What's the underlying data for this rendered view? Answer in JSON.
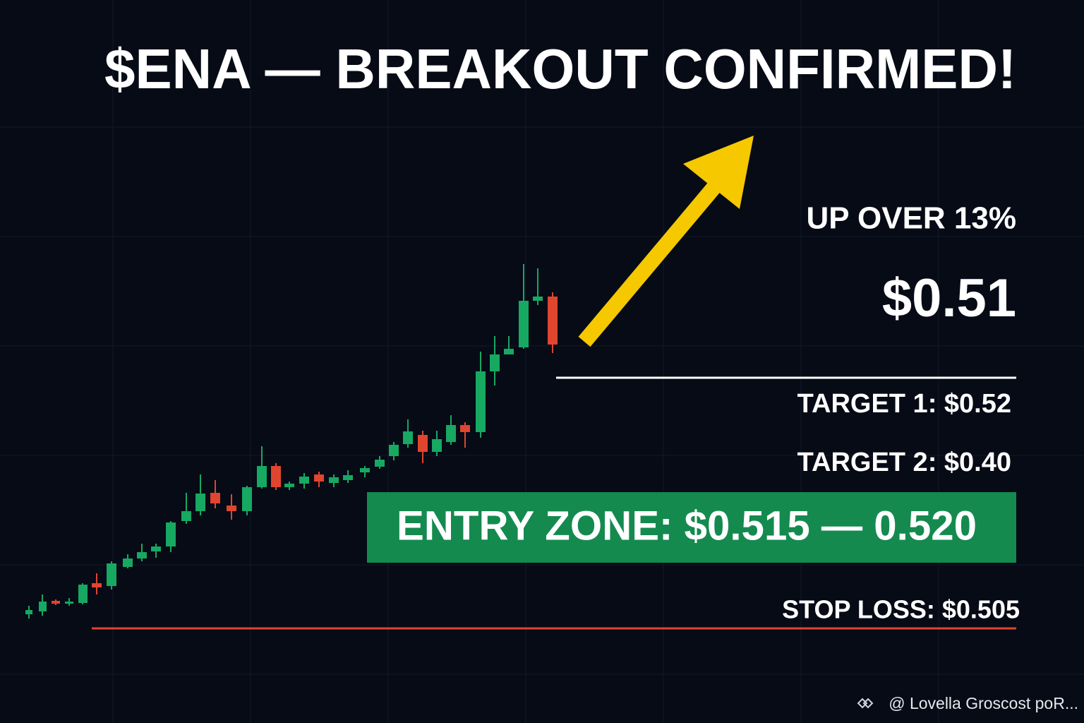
{
  "header": {
    "title": "$ENA — BREAKOUT CONFIRMED!"
  },
  "stats": {
    "change": "UP OVER 13%",
    "price": "$0.51"
  },
  "levels": {
    "target_1": "TARGET 1: $0.52",
    "target_2": "TARGET 2: $0.40",
    "entry_zone": "ENTRY ZONE: $0.515 — 0.520",
    "stop_loss": "STOP LOSS: $0.505"
  },
  "footer": {
    "watermark": "@ Lovella Groscost poR..."
  }
}
